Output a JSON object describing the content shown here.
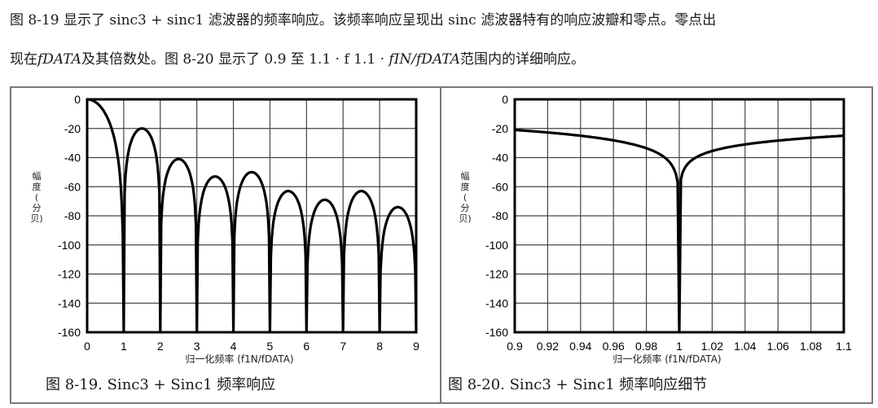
{
  "paragraph": {
    "line1": "图 8-19 显示了 sinc3 + sinc1 滤波器的频率响应。该频率响应呈现出 sinc 滤波器特有的响应波瓣和零点。零点出",
    "line2_prefix": "现在",
    "line2_math1": "fDATA",
    "line2_mid": "及其倍数处。图 8-20 显示了 0.9 至 1.1 · f 1.1 · ",
    "line2_math2": "fIN/fDATA",
    "line2_suffix": "范围内的详细响应。"
  },
  "figures": {
    "left": {
      "caption": "图 8-19. Sinc3 + Sinc1 频率响应",
      "ylabel": [
        "幅",
        "度",
        "(",
        "分",
        "贝)"
      ],
      "xlabel": "归一化频率 (f1N/fDATA)",
      "yticks": [
        "0",
        "-20",
        "-40",
        "-60",
        "-80",
        "-100",
        "-120",
        "-140",
        "-160"
      ],
      "xticks": [
        "0",
        "1",
        "2",
        "3",
        "4",
        "5",
        "6",
        "7",
        "8",
        "9"
      ]
    },
    "right": {
      "caption": "图 8-20. Sinc3 + Sinc1 频率响应细节",
      "ylabel": [
        "幅",
        "度",
        "(",
        "分",
        "贝)"
      ],
      "xlabel": "归一化频率 (f1N/fDATA)",
      "yticks": [
        "0",
        "-20",
        "-40",
        "-60",
        "-80",
        "-100",
        "-120",
        "-140",
        "-160"
      ],
      "xticks": [
        "0.9",
        "0.92",
        "0.94",
        "0.96",
        "0.98",
        "1",
        "1.02",
        "1.04",
        "1.06",
        "1.08",
        "1.1"
      ]
    }
  },
  "colors": {
    "curve": "#000000",
    "grid": "#333333",
    "border": "#7a7a7a"
  },
  "chart_data": [
    {
      "type": "line",
      "title": "图 8-19. Sinc3 + Sinc1 频率响应",
      "xlabel": "归一化频率 (f1N/fDATA)",
      "ylabel": "幅度(分贝)",
      "xlim": [
        0,
        9
      ],
      "ylim": [
        -160,
        0
      ],
      "grid": true,
      "x_ticks": [
        0,
        1,
        2,
        3,
        4,
        5,
        6,
        7,
        8,
        9
      ],
      "y_ticks": [
        0,
        -20,
        -40,
        -60,
        -80,
        -100,
        -120,
        -140,
        -160
      ],
      "nulls_at": [
        1,
        2,
        3,
        4,
        5,
        6,
        7,
        8,
        9
      ],
      "lobe_peaks": [
        {
          "x": 0.0,
          "y": 0
        },
        {
          "x": 1.35,
          "y": -20
        },
        {
          "x": 2.35,
          "y": -41
        },
        {
          "x": 3.55,
          "y": -53
        },
        {
          "x": 4.45,
          "y": -50
        },
        {
          "x": 5.4,
          "y": -63
        },
        {
          "x": 6.6,
          "y": -69
        },
        {
          "x": 7.45,
          "y": -63
        },
        {
          "x": 8.3,
          "y": -74
        }
      ],
      "series": [
        {
          "name": "Sinc3 + Sinc1",
          "x": [
            0,
            0.3,
            0.6,
            0.8,
            0.95,
            1,
            1.05,
            1.35,
            1.7,
            1.95,
            2,
            2.05,
            2.35,
            2.7,
            2.97,
            3,
            3.03,
            3.2,
            3.55,
            3.85,
            4,
            4.1,
            4.45,
            4.8,
            5,
            5.05,
            5.4,
            5.75,
            6,
            6.2,
            6.6,
            6.95,
            7,
            7.05,
            7.45,
            7.85,
            8,
            8.05,
            8.3,
            8.7,
            9
          ],
          "y": [
            0,
            -2,
            -8,
            -16,
            -30,
            -160,
            -36,
            -20,
            -27,
            -45,
            -160,
            -50,
            -41,
            -55,
            -100,
            -160,
            -100,
            -68,
            -53,
            -60,
            -160,
            -60,
            -50,
            -58,
            -160,
            -67,
            -63,
            -75,
            -160,
            -84,
            -69,
            -80,
            -160,
            -75,
            -63,
            -73,
            -160,
            -80,
            -74,
            -100,
            -160
          ]
        }
      ]
    },
    {
      "type": "line",
      "title": "图 8-20. Sinc3 + Sinc1 频率响应细节",
      "xlabel": "归一化频率 (f1N/fDATA)",
      "ylabel": "幅度(分贝)",
      "xlim": [
        0.9,
        1.1
      ],
      "ylim": [
        -160,
        0
      ],
      "grid": true,
      "x_ticks": [
        0.9,
        0.92,
        0.94,
        0.96,
        0.98,
        1,
        1.02,
        1.04,
        1.06,
        1.08,
        1.1
      ],
      "y_ticks": [
        0,
        -20,
        -40,
        -60,
        -80,
        -100,
        -120,
        -140,
        -160
      ],
      "series": [
        {
          "name": "Sinc3 + Sinc1",
          "x": [
            0.9,
            0.92,
            0.94,
            0.96,
            0.98,
            0.99,
            0.995,
            0.999,
            1.0,
            1.001,
            1.005,
            1.01,
            1.02,
            1.04,
            1.06,
            1.08,
            1.1
          ],
          "y": [
            -21,
            -23,
            -26,
            -30,
            -37,
            -43,
            -49,
            -62,
            -160,
            -62,
            -47,
            -40,
            -35,
            -30,
            -28,
            -26,
            -25
          ]
        }
      ]
    }
  ]
}
